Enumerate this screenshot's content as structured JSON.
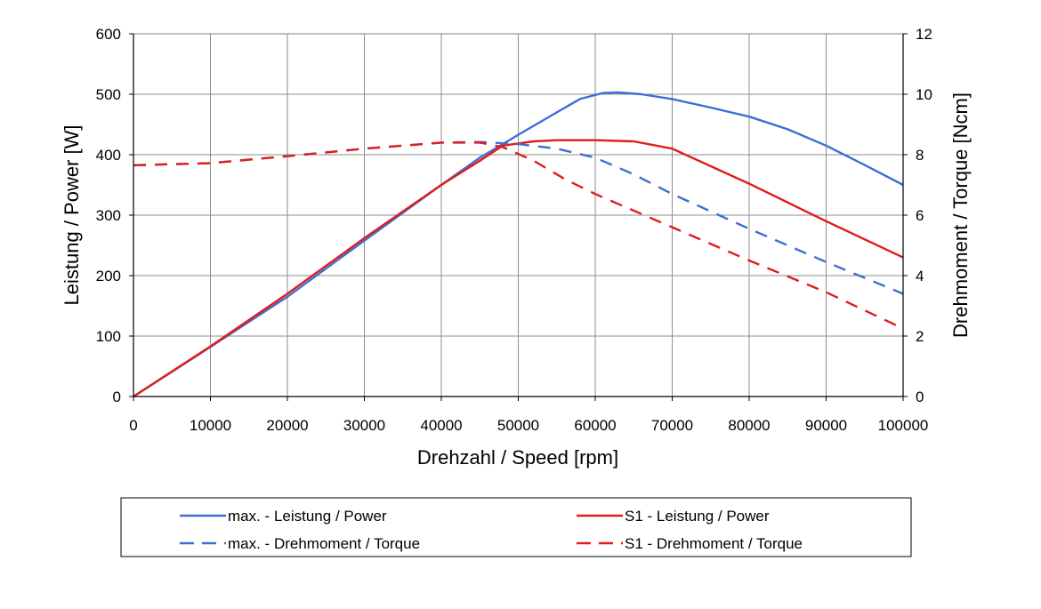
{
  "chart_data": {
    "type": "line",
    "xlabel": "Drehzahl / Speed [rpm]",
    "ylabel_left": "Leistung / Power [W]",
    "ylabel_right": "Drehmoment / Torque [Ncm]",
    "xlim": [
      0,
      100000
    ],
    "ylim_left": [
      0,
      600
    ],
    "ylim_right": [
      0,
      12
    ],
    "x_ticks": [
      "0",
      "10000",
      "20000",
      "30000",
      "40000",
      "50000",
      "60000",
      "70000",
      "80000",
      "90000",
      "100000"
    ],
    "y_left_ticks": [
      "0",
      "100",
      "200",
      "300",
      "400",
      "500",
      "600"
    ],
    "y_right_ticks": [
      "0",
      "2",
      "4",
      "6",
      "8",
      "10",
      "12"
    ],
    "grid": true,
    "legend_position": "bottom",
    "series": [
      {
        "name": "max. - Leistung / Power",
        "axis": "left",
        "style": "solid",
        "color": "#3c6fd6",
        "x": [
          0,
          10000,
          20000,
          30000,
          40000,
          45000,
          50000,
          55000,
          58000,
          61000,
          63000,
          66000,
          70000,
          75000,
          80000,
          85000,
          90000,
          95000,
          100000
        ],
        "y": [
          0,
          82,
          165,
          258,
          350,
          395,
          433,
          470,
          492,
          502,
          503,
          500,
          492,
          478,
          463,
          442,
          415,
          383,
          350
        ]
      },
      {
        "name": "S1 - Leistung / Power",
        "axis": "left",
        "style": "solid",
        "color": "#e01c1c",
        "x": [
          0,
          10000,
          20000,
          30000,
          40000,
          45000,
          48000,
          52000,
          55000,
          60000,
          65000,
          70000,
          80000,
          90000,
          100000
        ],
        "y": [
          0,
          83,
          170,
          262,
          350,
          390,
          415,
          422,
          424,
          424,
          422,
          410,
          352,
          290,
          230
        ]
      },
      {
        "name": "max. - Drehmoment / Torque",
        "axis": "right",
        "style": "dashed",
        "color": "#3c6fd6",
        "x": [
          0,
          10000,
          20000,
          30000,
          40000,
          45000,
          50000,
          55000,
          60000,
          65000,
          70000,
          80000,
          90000,
          100000
        ],
        "y": [
          7.65,
          7.72,
          7.95,
          8.2,
          8.4,
          8.42,
          8.35,
          8.2,
          7.9,
          7.35,
          6.7,
          5.55,
          4.45,
          3.4
        ]
      },
      {
        "name": "S1 - Drehmoment / Torque",
        "axis": "right",
        "style": "dashed",
        "color": "#e01c1c",
        "x": [
          0,
          10000,
          20000,
          30000,
          40000,
          45000,
          48000,
          52000,
          56000,
          60000,
          70000,
          80000,
          90000,
          100000
        ],
        "y": [
          7.65,
          7.72,
          7.95,
          8.2,
          8.4,
          8.4,
          8.25,
          7.8,
          7.2,
          6.7,
          5.6,
          4.5,
          3.45,
          2.25
        ]
      }
    ]
  }
}
